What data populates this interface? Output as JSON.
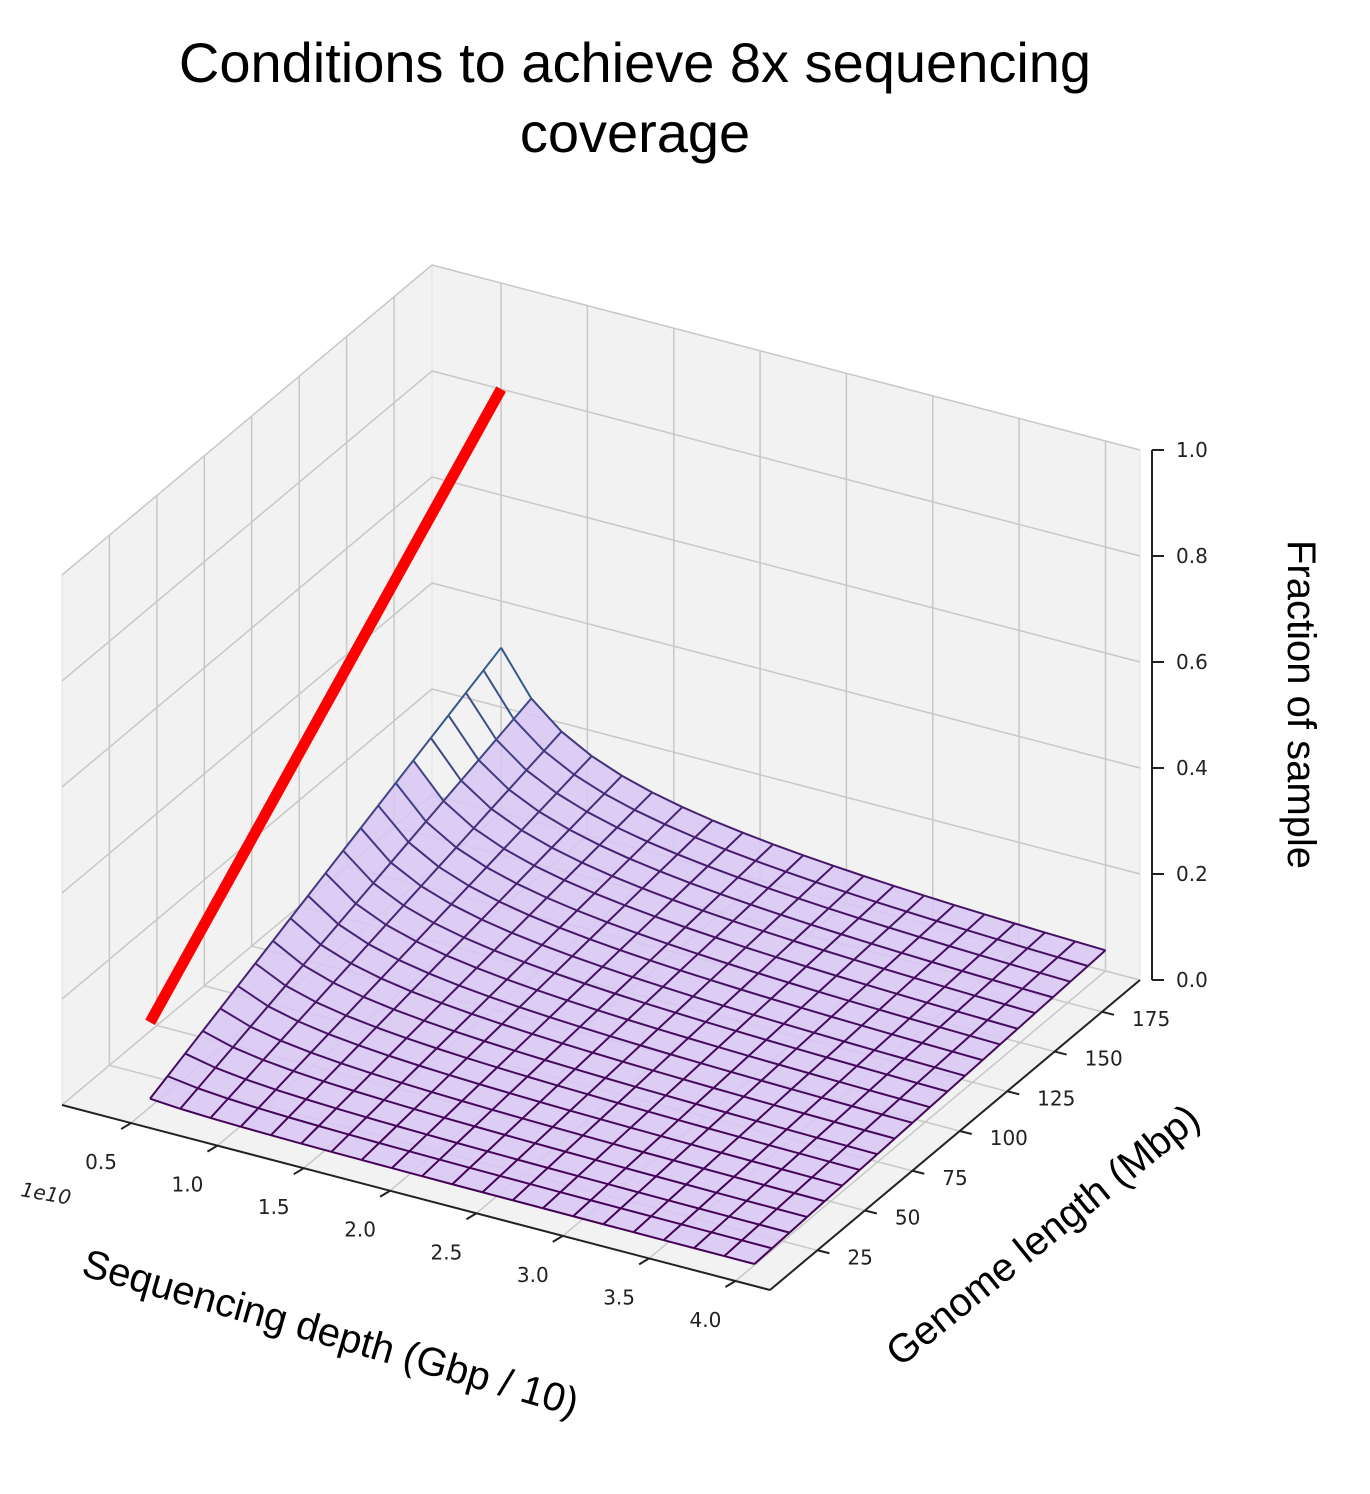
{
  "chart_data": {
    "type": "surface3d",
    "title": "Conditions to achieve 8x sequencing coverage",
    "xlabel": "Sequencing depth (Gbp / 10)",
    "ylabel": "Genome length (Mbp)",
    "zlabel": "Fraction of sample",
    "x_offset_label": "1e10",
    "x_ticks": [
      "0.5",
      "1.0",
      "1.5",
      "2.0",
      "2.5",
      "3.0",
      "3.5",
      "4.0"
    ],
    "y_ticks": [
      "25",
      "50",
      "75",
      "100",
      "125",
      "150",
      "175"
    ],
    "z_ticks": [
      "0.0",
      "0.2",
      "0.4",
      "0.6",
      "0.8",
      "1.0"
    ],
    "xlim": [
      0.1,
      4.2
    ],
    "ylim": [
      0,
      195
    ],
    "zlim": [
      0,
      1.0
    ],
    "surface_x_range": [
      0.5,
      4.0
    ],
    "surface_y_range": [
      10,
      195
    ],
    "surface_formula": "z = 8 * L * 1e6 / (D * 1e10)",
    "grid_rows": 20,
    "grid_cols": 20,
    "colormap": "viridis",
    "filled_region_max_z": 0.2,
    "filled_region_color": "#d9c6f4",
    "threshold_line": {
      "color": "#ff0000",
      "start": {
        "x": 0.5,
        "y": 10,
        "z": 0.16
      },
      "end": {
        "x": 0.5,
        "y": 195,
        "z": 0.8
      }
    },
    "grid": true,
    "pane_color": "#f2f2f2"
  }
}
